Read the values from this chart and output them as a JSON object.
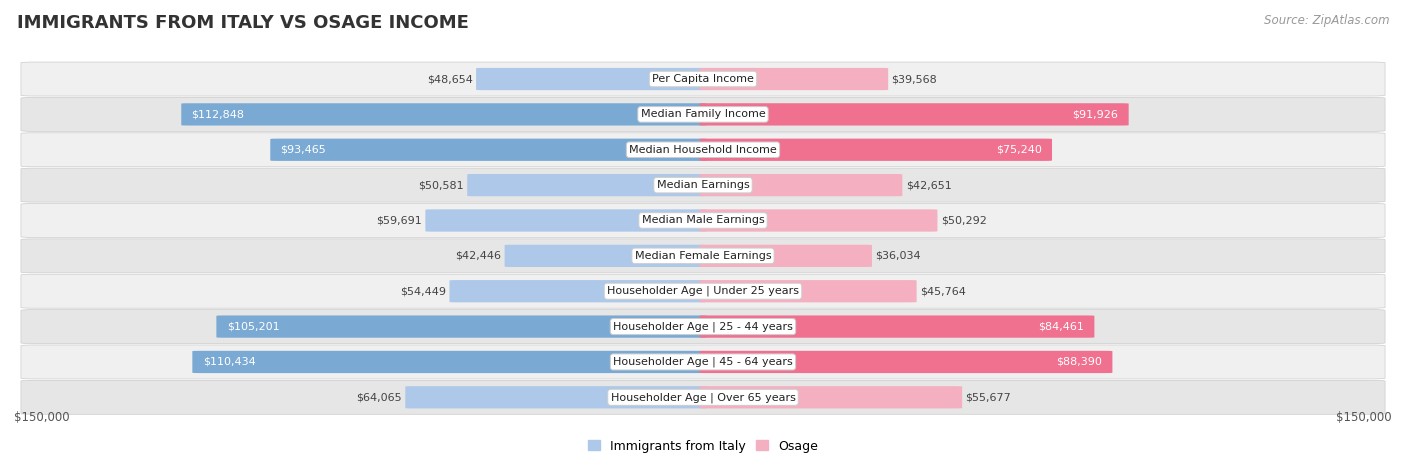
{
  "title": "IMMIGRANTS FROM ITALY VS OSAGE INCOME",
  "source": "Source: ZipAtlas.com",
  "categories": [
    "Per Capita Income",
    "Median Family Income",
    "Median Household Income",
    "Median Earnings",
    "Median Male Earnings",
    "Median Female Earnings",
    "Householder Age | Under 25 years",
    "Householder Age | 25 - 44 years",
    "Householder Age | 45 - 64 years",
    "Householder Age | Over 65 years"
  ],
  "italy_values": [
    48654,
    112848,
    93465,
    50581,
    59691,
    42446,
    54449,
    105201,
    110434,
    64065
  ],
  "osage_values": [
    39568,
    91926,
    75240,
    42651,
    50292,
    36034,
    45764,
    84461,
    88390,
    55677
  ],
  "italy_color_light": "#adc8e8",
  "italy_color_dark": "#7aaad4",
  "osage_color_light": "#f4b0c0",
  "osage_color_dark": "#f07090",
  "italy_inside_threshold": 75000,
  "osage_inside_threshold": 65000,
  "max_value": 150000,
  "bar_height": 0.62,
  "row_bg_even": "#f0f0f0",
  "row_bg_odd": "#e6e6e6",
  "label_color_inside": "#ffffff",
  "label_color_outside": "#555555",
  "legend_italy": "Immigrants from Italy",
  "legend_osage": "Osage",
  "xlabel_left": "$150,000",
  "xlabel_right": "$150,000",
  "title_fontsize": 13,
  "source_fontsize": 8.5,
  "label_fontsize": 8,
  "category_fontsize": 8,
  "axis_fontsize": 8.5
}
